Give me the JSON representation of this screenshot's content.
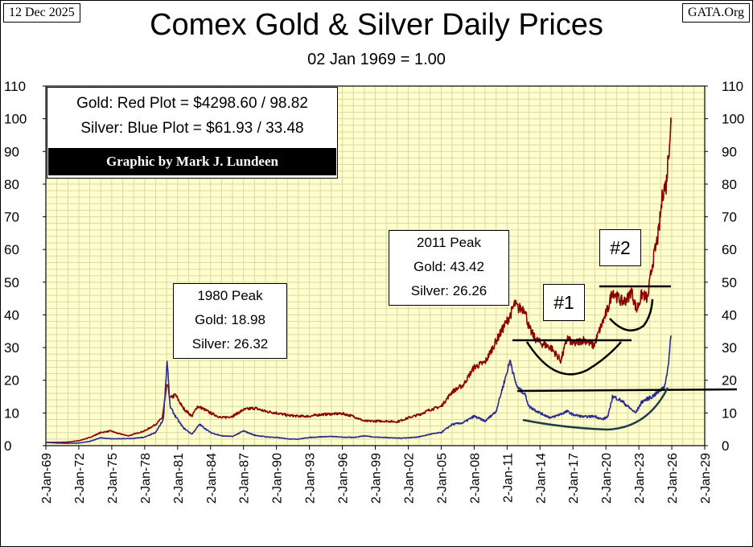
{
  "header": {
    "date": "12 Dec 2025",
    "source": "GATA.Org",
    "title": "Comex Gold & Silver Daily Prices",
    "subtitle": "02 Jan 1969 = 1.00"
  },
  "legend": {
    "gold_line": "Gold: Red Plot =  $4298.60 / 98.82",
    "silver_line": "Silver: Blue Plot  =  $61.93 / 33.48",
    "credit": "Graphic by Mark J. Lundeen"
  },
  "annotations": {
    "peak1980": {
      "title": "1980 Peak",
      "gold": "Gold:  18.98",
      "silver": "Silver: 26.32"
    },
    "peak2011": {
      "title": "2011 Peak",
      "gold": "Gold:  43.42",
      "silver": "Silver: 26.26"
    },
    "marker1": "#1",
    "marker2": "#2"
  },
  "colors": {
    "gold": "#8B0000",
    "silver": "#2B2B8F",
    "plot_bg": "#FFFFCC",
    "grid": "#D8D8A8",
    "trend": "#000000",
    "silver_trend": "#1F3A4A"
  },
  "chart_data": {
    "type": "line",
    "title": "Comex Gold & Silver Daily Prices",
    "subtitle": "02 Jan 1969 = 1.00",
    "ylim": [
      0,
      110
    ],
    "yticks": [
      0,
      10,
      20,
      30,
      40,
      50,
      60,
      70,
      80,
      90,
      100,
      110
    ],
    "xlim": [
      1969,
      2029
    ],
    "xtick_labels": [
      "2-Jan-69",
      "2-Jan-72",
      "2-Jan-75",
      "2-Jan-78",
      "2-Jan-81",
      "2-Jan-84",
      "2-Jan-87",
      "2-Jan-90",
      "2-Jan-93",
      "2-Jan-96",
      "2-Jan-99",
      "2-Jan-02",
      "2-Jan-05",
      "2-Jan-08",
      "2-Jan-11",
      "2-Jan-14",
      "2-Jan-17",
      "2-Jan-20",
      "2-Jan-23",
      "2-Jan-26",
      "2-Jan-29"
    ],
    "grid": true,
    "series": [
      {
        "name": "Gold",
        "color": "#8B0000",
        "points": [
          [
            1969,
            1.0
          ],
          [
            1970,
            1.0
          ],
          [
            1971,
            1.1
          ],
          [
            1972,
            1.5
          ],
          [
            1973,
            2.5
          ],
          [
            1974,
            4.0
          ],
          [
            1974.9,
            4.5
          ],
          [
            1975.5,
            3.8
          ],
          [
            1976.5,
            3.0
          ],
          [
            1977,
            3.5
          ],
          [
            1978,
            4.5
          ],
          [
            1979,
            6.5
          ],
          [
            1979.6,
            8.5
          ],
          [
            1980.05,
            18.98
          ],
          [
            1980.3,
            14.5
          ],
          [
            1980.8,
            15.5
          ],
          [
            1981.5,
            11.5
          ],
          [
            1982.3,
            9.0
          ],
          [
            1982.8,
            12.0
          ],
          [
            1983.2,
            11.5
          ],
          [
            1984,
            10.0
          ],
          [
            1985,
            8.5
          ],
          [
            1986,
            9.0
          ],
          [
            1987,
            11.0
          ],
          [
            1988,
            11.5
          ],
          [
            1989,
            10.5
          ],
          [
            1990,
            10.0
          ],
          [
            1991,
            9.3
          ],
          [
            1992,
            9.0
          ],
          [
            1993,
            9.0
          ],
          [
            1994,
            9.5
          ],
          [
            1995,
            9.7
          ],
          [
            1996,
            9.8
          ],
          [
            1997,
            9.0
          ],
          [
            1998,
            7.5
          ],
          [
            1999,
            7.5
          ],
          [
            2000,
            7.5
          ],
          [
            2001,
            7.3
          ],
          [
            2002,
            8.5
          ],
          [
            2003,
            9.5
          ],
          [
            2004,
            11.0
          ],
          [
            2005,
            12.0
          ],
          [
            2006,
            16.5
          ],
          [
            2007,
            18.5
          ],
          [
            2008,
            24.0
          ],
          [
            2009,
            25.5
          ],
          [
            2010,
            32.0
          ],
          [
            2011.3,
            40.0
          ],
          [
            2011.7,
            43.42
          ],
          [
            2012,
            42.0
          ],
          [
            2012.6,
            42.0
          ],
          [
            2013,
            36.0
          ],
          [
            2013.5,
            33.0
          ],
          [
            2014,
            31.5
          ],
          [
            2015,
            30.0
          ],
          [
            2015.9,
            26.0
          ],
          [
            2016.5,
            33.0
          ],
          [
            2017,
            31.0
          ],
          [
            2018,
            32.5
          ],
          [
            2018.9,
            30.5
          ],
          [
            2019.5,
            36.0
          ],
          [
            2020.2,
            42.0
          ],
          [
            2020.6,
            47.5
          ],
          [
            2021,
            45.5
          ],
          [
            2021.5,
            44.0
          ],
          [
            2022,
            45.0
          ],
          [
            2022.3,
            47.5
          ],
          [
            2022.8,
            41.5
          ],
          [
            2023.3,
            46.5
          ],
          [
            2023.8,
            45.0
          ],
          [
            2024.2,
            55.0
          ],
          [
            2024.8,
            65.0
          ],
          [
            2025.2,
            78.0
          ],
          [
            2025.5,
            80.0
          ],
          [
            2025.8,
            94.0
          ],
          [
            2025.92,
            98.82
          ]
        ]
      },
      {
        "name": "Silver",
        "color": "#2B2B8F",
        "points": [
          [
            1969,
            1.0
          ],
          [
            1970,
            0.8
          ],
          [
            1971,
            0.7
          ],
          [
            1972,
            0.8
          ],
          [
            1973,
            1.3
          ],
          [
            1974,
            2.4
          ],
          [
            1975,
            2.1
          ],
          [
            1976,
            2.1
          ],
          [
            1977,
            2.2
          ],
          [
            1978,
            2.6
          ],
          [
            1979,
            4.0
          ],
          [
            1979.7,
            8.0
          ],
          [
            1980.05,
            26.32
          ],
          [
            1980.3,
            12.0
          ],
          [
            1980.8,
            9.0
          ],
          [
            1981.5,
            5.5
          ],
          [
            1982.3,
            3.5
          ],
          [
            1983,
            6.5
          ],
          [
            1984,
            4.0
          ],
          [
            1985,
            3.0
          ],
          [
            1986,
            2.8
          ],
          [
            1987,
            4.5
          ],
          [
            1988,
            3.2
          ],
          [
            1989,
            2.7
          ],
          [
            1990,
            2.5
          ],
          [
            1991,
            2.1
          ],
          [
            1992,
            2.0
          ],
          [
            1993,
            2.5
          ],
          [
            1994,
            2.7
          ],
          [
            1995,
            2.8
          ],
          [
            1996,
            2.6
          ],
          [
            1997,
            2.5
          ],
          [
            1998,
            3.0
          ],
          [
            1999,
            2.6
          ],
          [
            2000,
            2.5
          ],
          [
            2001,
            2.3
          ],
          [
            2002,
            2.4
          ],
          [
            2003,
            2.7
          ],
          [
            2004,
            3.5
          ],
          [
            2005,
            4.0
          ],
          [
            2006,
            6.5
          ],
          [
            2007,
            7.0
          ],
          [
            2008,
            9.0
          ],
          [
            2009,
            7.5
          ],
          [
            2010,
            10.5
          ],
          [
            2011.3,
            26.26
          ],
          [
            2011.7,
            20.0
          ],
          [
            2012,
            17.5
          ],
          [
            2012.6,
            16.0
          ],
          [
            2013,
            12.0
          ],
          [
            2014,
            10.0
          ],
          [
            2015,
            8.5
          ],
          [
            2016.5,
            10.5
          ],
          [
            2017,
            9.5
          ],
          [
            2018,
            8.8
          ],
          [
            2019,
            9.0
          ],
          [
            2019.7,
            8.0
          ],
          [
            2020.2,
            9.0
          ],
          [
            2020.6,
            15.0
          ],
          [
            2021,
            14.5
          ],
          [
            2021.5,
            13.5
          ],
          [
            2022,
            12.0
          ],
          [
            2022.7,
            10.0
          ],
          [
            2023.3,
            13.5
          ],
          [
            2024.2,
            15.0
          ],
          [
            2024.8,
            16.5
          ],
          [
            2025.3,
            18.0
          ],
          [
            2025.6,
            22.0
          ],
          [
            2025.92,
            33.48
          ]
        ]
      }
    ]
  }
}
